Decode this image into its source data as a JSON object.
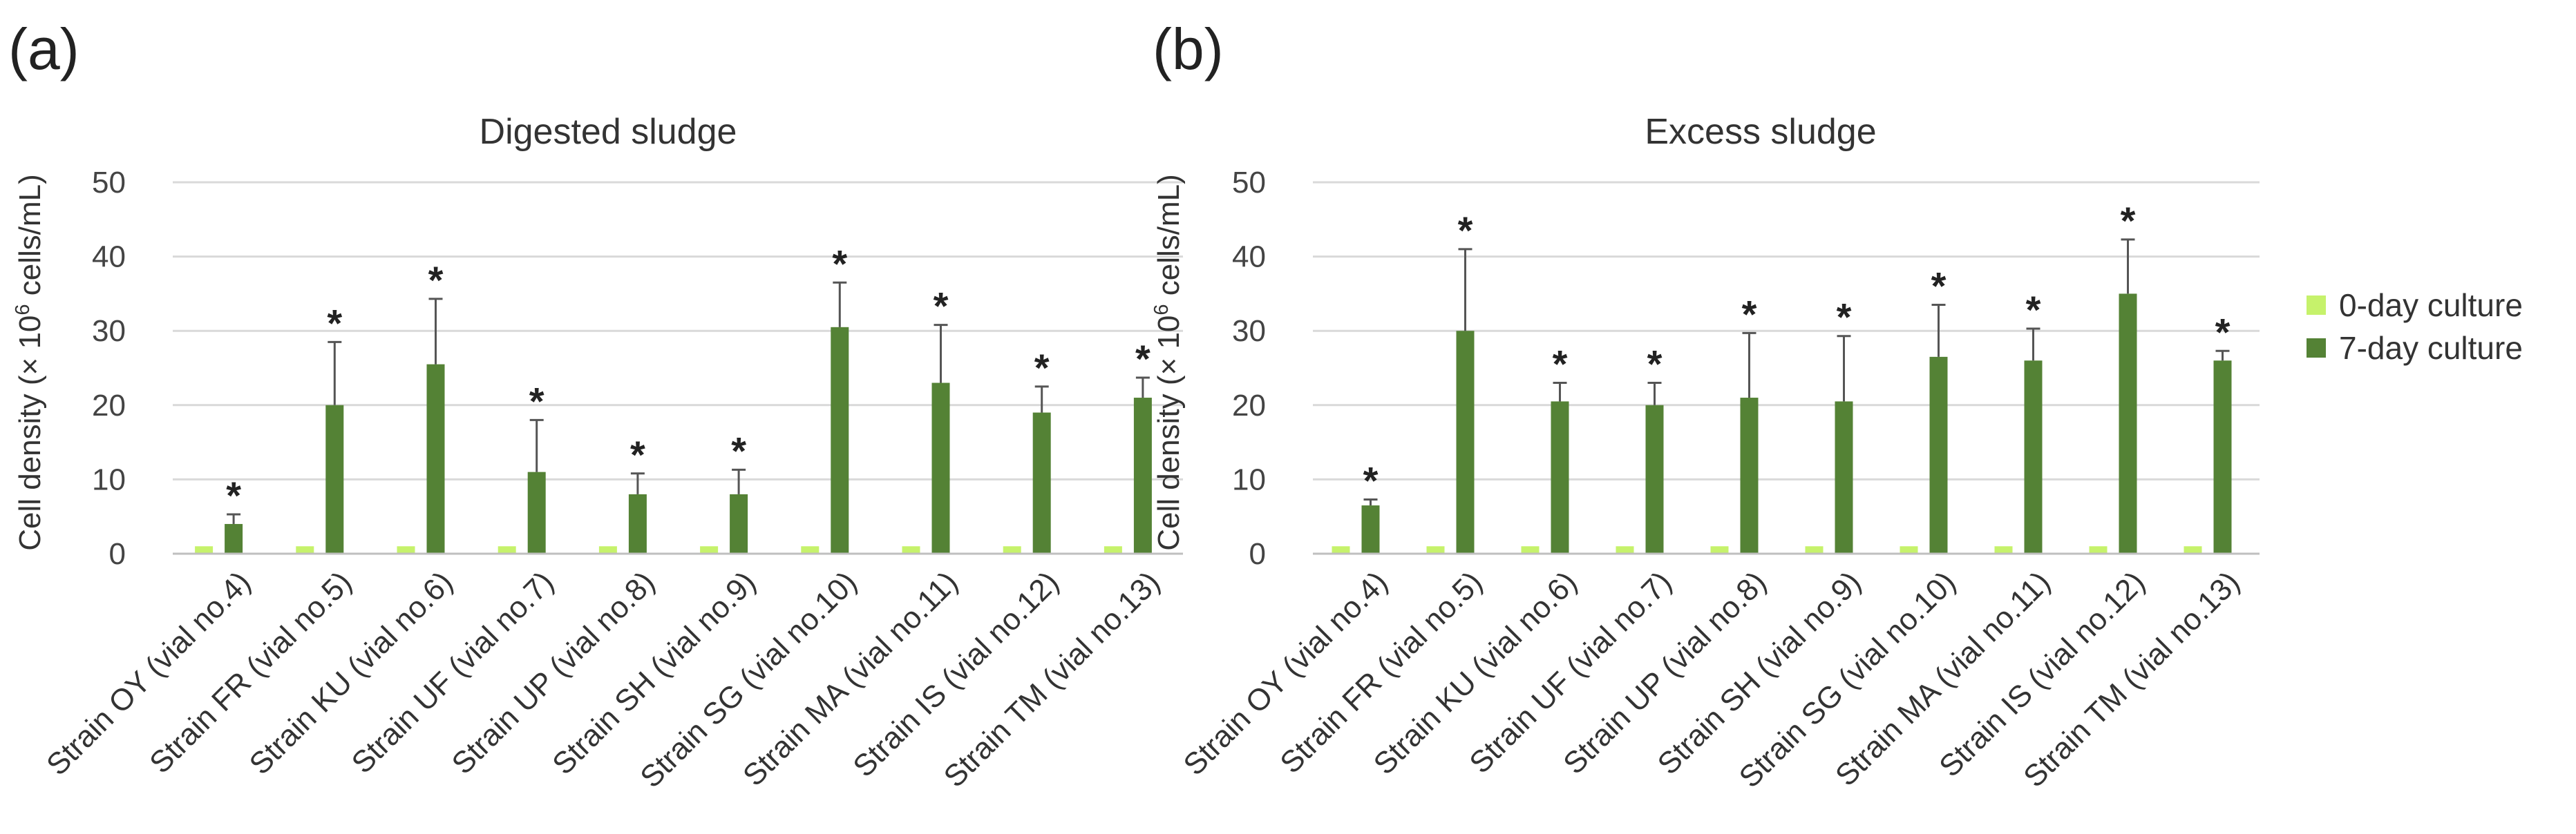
{
  "legend": [
    {
      "label": "0-day culture",
      "color": "#c6f26b"
    },
    {
      "label": "7-day culture",
      "color": "#548235"
    }
  ],
  "chart_data": [
    {
      "panel": "(a)",
      "type": "bar",
      "title": "Digested sludge",
      "ylabel": "Cell density (× 10",
      "ylabel_sup": "6",
      "ylabel_end": " cells/mL)",
      "ylim": [
        0,
        50
      ],
      "yticks": [
        0,
        10,
        20,
        30,
        40,
        50
      ],
      "grid": true,
      "categories": [
        "Strain OY (vial no.4)",
        "Strain FR (vial no.5)",
        "Strain KU (vial no.6)",
        "Strain UF (vial no.7)",
        "Strain UP (vial no.8)",
        "Strain SH (vial no.9)",
        "Strain SG (vial no.10)",
        "Strain MA (vial no.11)",
        "Strain IS (vial no.12)",
        "Strain TM (vial no.13)"
      ],
      "series": [
        {
          "name": "0-day culture",
          "values": [
            1,
            1,
            1,
            1,
            1,
            1,
            1,
            1,
            1,
            1
          ],
          "errors": [
            0,
            0,
            0,
            0,
            0,
            0,
            0,
            0,
            0,
            0
          ]
        },
        {
          "name": "7-day culture",
          "values": [
            4,
            20,
            25.5,
            11,
            8,
            8,
            30.5,
            23,
            19,
            21
          ],
          "errors": [
            1.3,
            8.5,
            8.8,
            7,
            2.8,
            3.3,
            6,
            7.8,
            3.5,
            2.7
          ]
        }
      ],
      "annotations": [
        "*",
        "*",
        "*",
        "*",
        "*",
        "*",
        "*",
        "*",
        "*",
        "*"
      ]
    },
    {
      "panel": "(b)",
      "type": "bar",
      "title": "Excess sludge",
      "ylabel": "Cell density (× 10",
      "ylabel_sup": "6",
      "ylabel_end": " cells/mL)",
      "ylim": [
        0,
        50
      ],
      "yticks": [
        0,
        10,
        20,
        30,
        40,
        50
      ],
      "grid": true,
      "categories": [
        "Strain OY (vial no.4)",
        "Strain FR (vial no.5)",
        "Strain KU (vial no.6)",
        "Strain UF (vial no.7)",
        "Strain UP (vial no.8)",
        "Strain SH (vial no.9)",
        "Strain SG (vial no.10)",
        "Strain MA (vial no.11)",
        "Strain IS (vial no.12)",
        "Strain TM (vial no.13)"
      ],
      "series": [
        {
          "name": "0-day culture",
          "values": [
            1,
            1,
            1,
            1,
            1,
            1,
            1,
            1,
            1,
            1
          ],
          "errors": [
            0,
            0,
            0,
            0,
            0,
            0,
            0,
            0,
            0,
            0
          ]
        },
        {
          "name": "7-day culture",
          "values": [
            6.5,
            30,
            20.5,
            20,
            21,
            20.5,
            26.5,
            26,
            35,
            26
          ],
          "errors": [
            0.8,
            11,
            2.5,
            3,
            8.7,
            8.8,
            7,
            4.3,
            7.3,
            1.3
          ]
        }
      ],
      "annotations": [
        "*",
        "*",
        "*",
        "*",
        "*",
        "*",
        "*",
        "*",
        "*",
        "*"
      ]
    }
  ]
}
